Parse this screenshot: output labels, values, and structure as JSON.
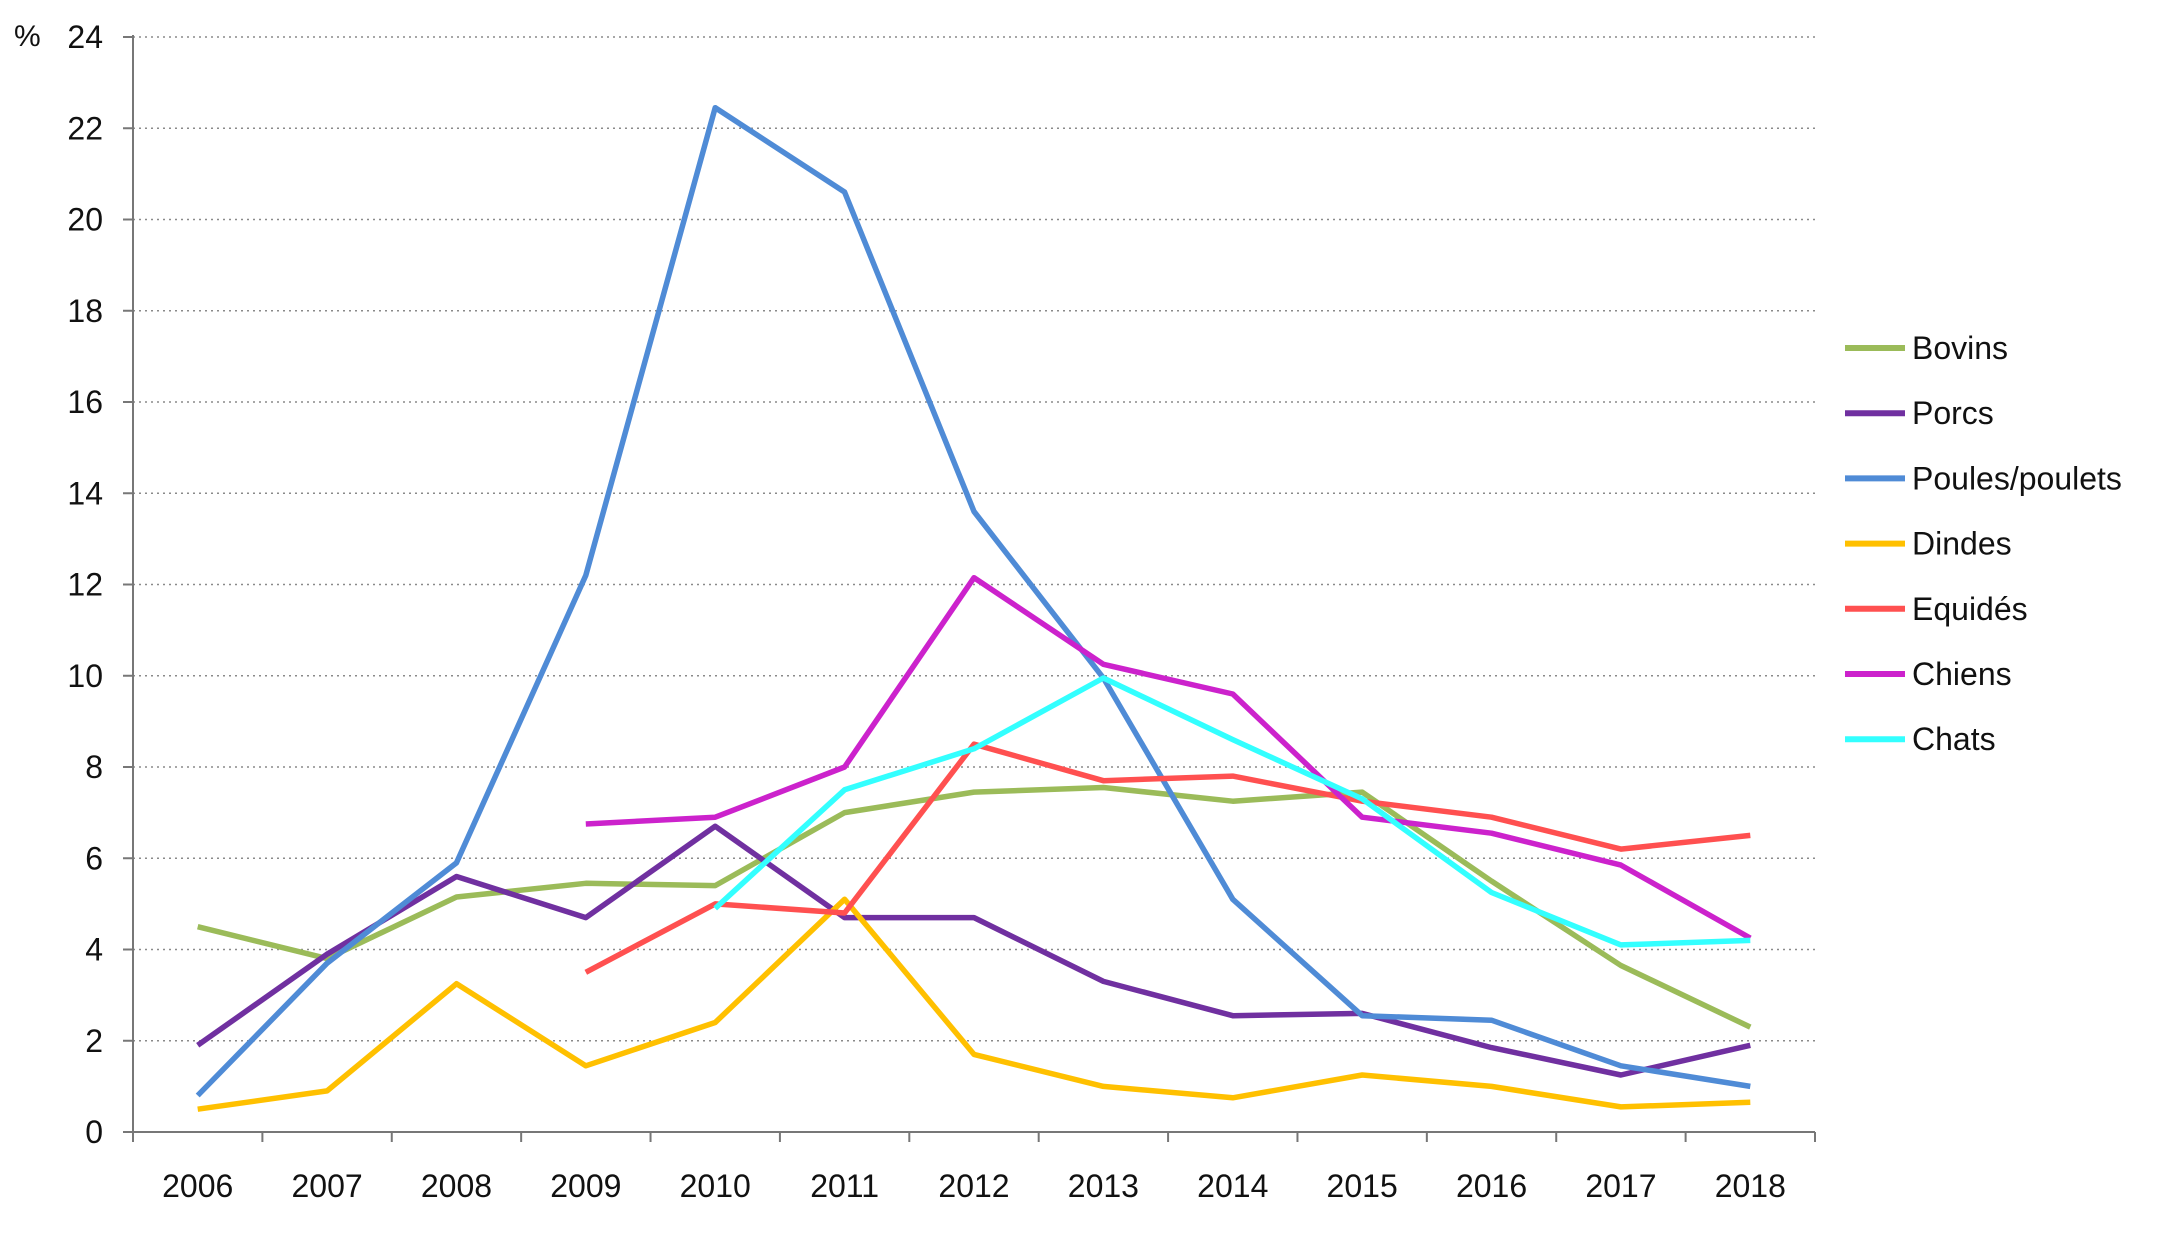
{
  "chart_data": {
    "type": "line",
    "title": "",
    "xlabel": "",
    "ylabel": "%",
    "ylim": [
      0,
      24
    ],
    "yticks": [
      0,
      2,
      4,
      6,
      8,
      10,
      12,
      14,
      16,
      18,
      20,
      22,
      24
    ],
    "categories": [
      "2006",
      "2007",
      "2008",
      "2009",
      "2010",
      "2011",
      "2012",
      "2013",
      "2014",
      "2015",
      "2016",
      "2017",
      "2018"
    ],
    "grid": "horizontal dotted",
    "legend_position": "right",
    "series": [
      {
        "name": "Bovins",
        "color": "#9BBB59",
        "values": [
          4.5,
          3.8,
          5.15,
          5.45,
          5.4,
          7.0,
          7.45,
          7.55,
          7.25,
          7.45,
          5.5,
          3.65,
          2.3
        ]
      },
      {
        "name": "Porcs",
        "color": "#7030A0",
        "values": [
          1.9,
          3.9,
          5.6,
          4.7,
          6.7,
          4.7,
          4.7,
          3.3,
          2.55,
          2.6,
          1.85,
          1.25,
          1.9
        ]
      },
      {
        "name": "Poules/poulets",
        "color": "#4F8BD6",
        "values": [
          0.8,
          3.7,
          5.9,
          12.2,
          22.45,
          20.6,
          13.6,
          9.95,
          5.1,
          2.55,
          2.45,
          1.45,
          1.0
        ]
      },
      {
        "name": "Dindes",
        "color": "#FFC000",
        "values": [
          0.5,
          0.9,
          3.25,
          1.45,
          2.4,
          5.1,
          1.7,
          1.0,
          0.75,
          1.25,
          1.0,
          0.55,
          0.65
        ]
      },
      {
        "name": "Equidés",
        "color": "#FF5050",
        "values": [
          null,
          null,
          null,
          3.5,
          5.0,
          4.8,
          8.5,
          7.7,
          7.8,
          7.25,
          6.9,
          6.2,
          6.5
        ]
      },
      {
        "name": "Chiens",
        "color": "#CC22CC",
        "values": [
          null,
          null,
          null,
          6.75,
          6.9,
          8.0,
          12.15,
          10.25,
          9.6,
          6.9,
          6.55,
          5.85,
          4.25
        ]
      },
      {
        "name": "Chats",
        "color": "#33FFFF",
        "values": [
          null,
          null,
          null,
          null,
          4.9,
          7.5,
          8.4,
          9.95,
          8.6,
          7.3,
          5.25,
          4.1,
          4.2
        ]
      }
    ]
  }
}
